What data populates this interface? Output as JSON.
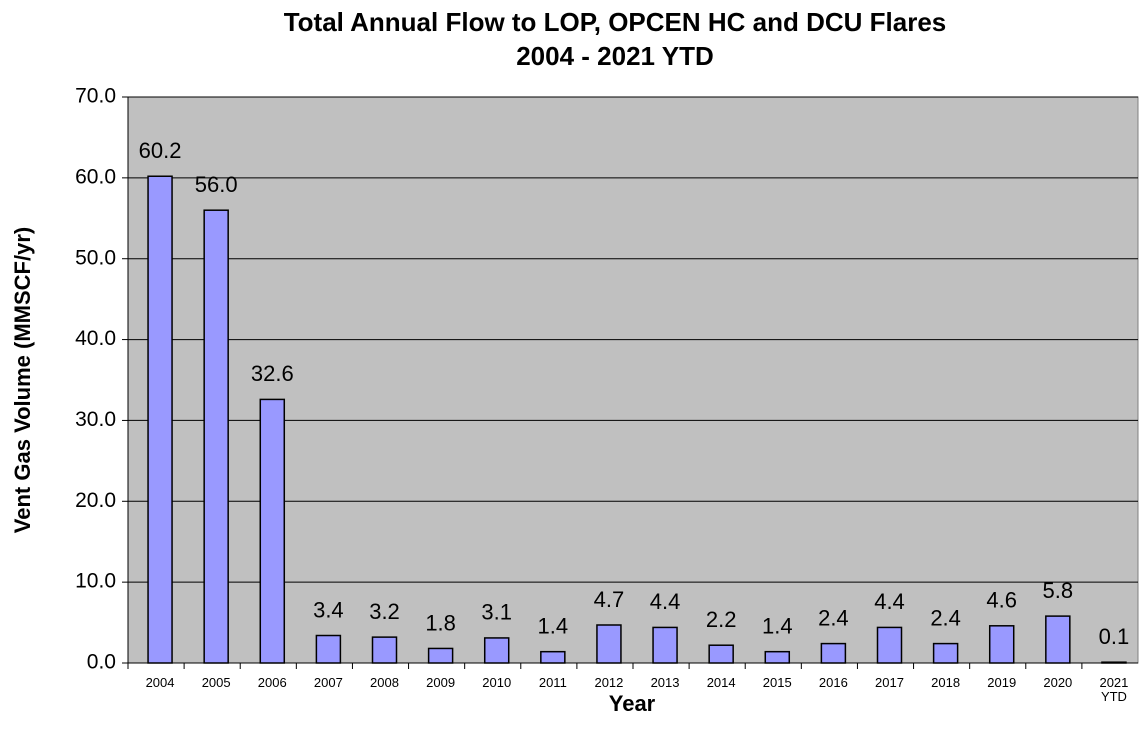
{
  "chart_data": {
    "type": "bar",
    "title": "Total Annual Flow to LOP, OPCEN HC and DCU Flares",
    "subtitle": "2004 - 2021 YTD",
    "x_label": "Year",
    "y_label": "Vent Gas Volume (MMSCF/yr)",
    "categories": [
      "2004",
      "2005",
      "2006",
      "2007",
      "2008",
      "2009",
      "2010",
      "2011",
      "2012",
      "2013",
      "2014",
      "2015",
      "2016",
      "2017",
      "2018",
      "2019",
      "2020",
      "2021 YTD"
    ],
    "values": [
      60.2,
      56.0,
      32.6,
      3.4,
      3.2,
      1.8,
      3.1,
      1.4,
      4.7,
      4.4,
      2.2,
      1.4,
      2.4,
      4.4,
      2.4,
      4.6,
      5.8,
      0.1
    ],
    "value_labels": [
      "60.2",
      "56.0",
      "32.6",
      "3.4",
      "3.2",
      "1.8",
      "3.1",
      "1.4",
      "4.7",
      "4.4",
      "2.2",
      "1.4",
      "2.4",
      "4.4",
      "2.4",
      "4.6",
      "5.8",
      "0.1"
    ],
    "color": "#9999ff",
    "ylim": [
      0,
      70
    ],
    "yticks": [
      {
        "value": 0,
        "label": "0.0"
      },
      {
        "value": 10,
        "label": "10.0"
      },
      {
        "value": 20,
        "label": "20.0"
      },
      {
        "value": 30,
        "label": "30.0"
      },
      {
        "value": 40,
        "label": "40.0"
      },
      {
        "value": 50,
        "label": "50.0"
      },
      {
        "value": 60,
        "label": "60.0"
      },
      {
        "value": 70,
        "label": "70.0"
      }
    ],
    "grid": true
  }
}
